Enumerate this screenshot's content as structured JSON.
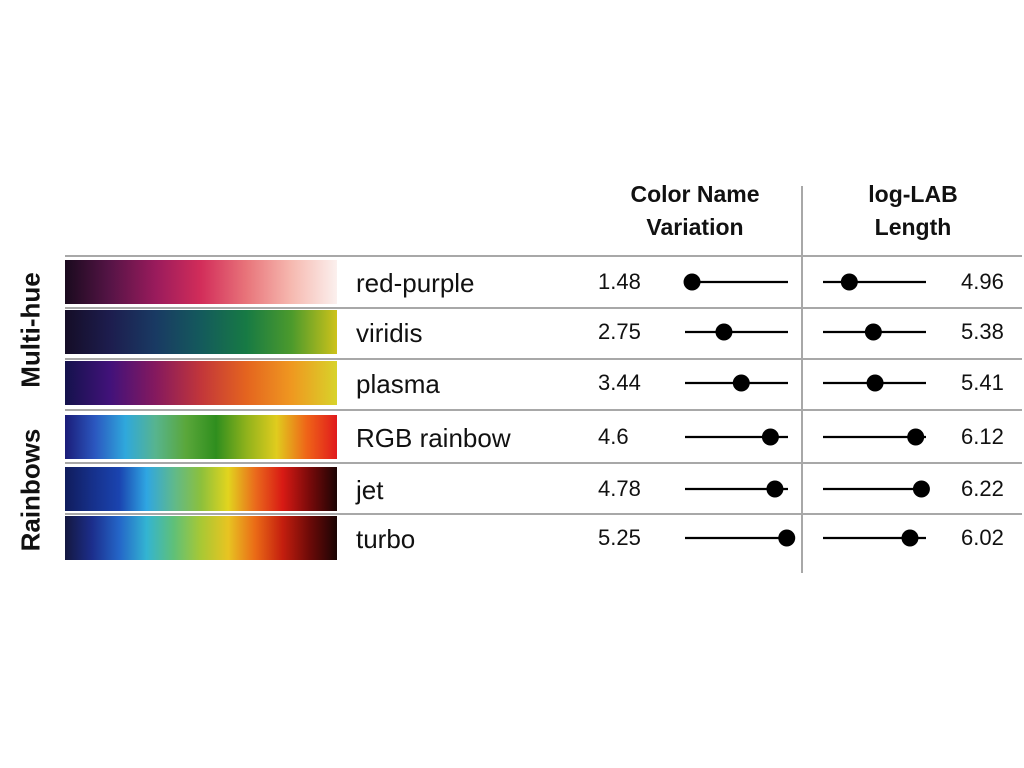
{
  "chart_data": {
    "type": "table",
    "columns": {
      "left": {
        "title": [
          "Color Name",
          "Variation"
        ]
      },
      "right": {
        "title": [
          "log-LAB",
          "Length"
        ]
      }
    },
    "groups": [
      {
        "label": "Multi-hue",
        "rows": [
          0,
          1,
          2
        ]
      },
      {
        "label": "Rainbows",
        "rows": [
          3,
          4,
          5
        ]
      }
    ],
    "rows": [
      {
        "name": "red-purple",
        "cnv": 1.48,
        "cnv_label": "1.48",
        "lab": 4.96,
        "lab_label": "4.96",
        "colors": [
          "#1a0a1e",
          "#561446",
          "#9a1b5c",
          "#d22d5a",
          "#e8747a",
          "#f6b9b0",
          "#fbf0ee"
        ]
      },
      {
        "name": "viridis",
        "cnv": 2.75,
        "cnv_label": "2.75",
        "lab": 5.38,
        "lab_label": "5.38",
        "colors": [
          "#150d27",
          "#1d1d4e",
          "#193a63",
          "#145a5c",
          "#177a44",
          "#4c9a2c",
          "#cdc21a"
        ]
      },
      {
        "name": "plasma",
        "cnv": 3.44,
        "cnv_label": "3.44",
        "lab": 5.41,
        "lab_label": "5.41",
        "colors": [
          "#14124c",
          "#42127a",
          "#85195e",
          "#c2363a",
          "#e4641f",
          "#ef9820",
          "#d8d32a"
        ]
      },
      {
        "name": "RGB rainbow",
        "cnv": 4.6,
        "cnv_label": "4.6",
        "lab": 6.12,
        "lab_label": "6.12",
        "colors": [
          "#1b1c78",
          "#2b58c0",
          "#2fa8dc",
          "#57b48e",
          "#5aa73a",
          "#2f8e1e",
          "#8fb21c",
          "#e0cc1e",
          "#ef6418",
          "#e01a1c"
        ]
      },
      {
        "name": "jet",
        "cnv": 4.78,
        "cnv_label": "4.78",
        "lab": 6.22,
        "lab_label": "6.22",
        "colors": [
          "#101c5c",
          "#16308a",
          "#1a44b0",
          "#2fa6e2",
          "#5fb98c",
          "#8cc03c",
          "#e2d41e",
          "#ea6a1c",
          "#d81a14",
          "#780a0a",
          "#1c0404"
        ]
      },
      {
        "name": "turbo",
        "cnv": 5.25,
        "cnv_label": "5.25",
        "lab": 6.02,
        "lab_label": "6.02",
        "colors": [
          "#141840",
          "#1c2e8c",
          "#2466c8",
          "#33b4d2",
          "#5fc078",
          "#a8c834",
          "#e8c422",
          "#ea6a16",
          "#c41e0e",
          "#6c0a08",
          "#1a0404"
        ]
      }
    ],
    "cnv_scale": [
      1.2,
      5.3
    ],
    "lab_scale": [
      4.5,
      6.3
    ]
  }
}
